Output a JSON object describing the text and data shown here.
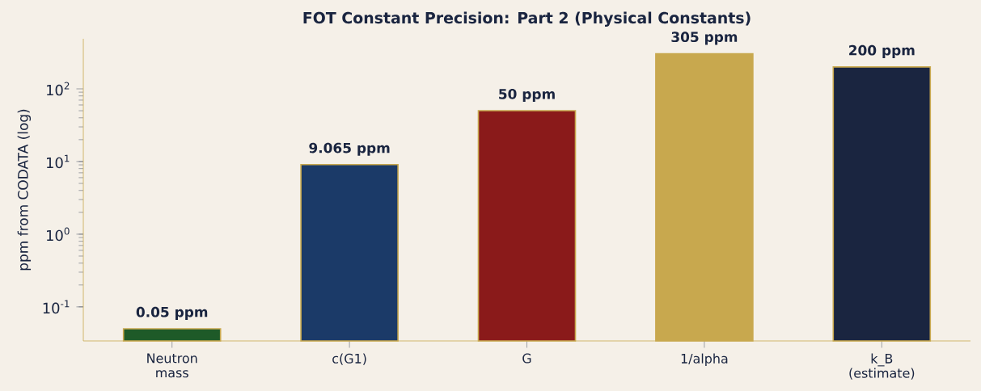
{
  "chart_data": {
    "type": "bar",
    "title": "FOT Constant Precision: Part 2 (Physical Constants)",
    "ylabel": "ppm from CODATA (log)",
    "categories": [
      "Neutron mass",
      "c(G1)",
      "G",
      "1/alpha",
      "k_B (estimate)"
    ],
    "values": [
      0.05,
      9.065,
      50,
      305,
      200
    ],
    "colors": [
      "#1e5a28",
      "#1b3a68",
      "#8a1a1a",
      "#c8a84e",
      "#1a2540"
    ],
    "value_labels": [
      "0.05 ppm",
      "9.065 ppm",
      "50 ppm",
      "305 ppm",
      "200 ppm"
    ],
    "log": true,
    "grid": false,
    "ylim": [
      0.034,
      489
    ],
    "yticks": [
      {
        "value": 0.1,
        "label": "10$^{-1}$"
      },
      {
        "value": 1,
        "label": "10$^{0}$"
      },
      {
        "value": 10,
        "label": "10$^{1}$"
      },
      {
        "value": 100,
        "label": "10$^{2}$"
      }
    ]
  }
}
